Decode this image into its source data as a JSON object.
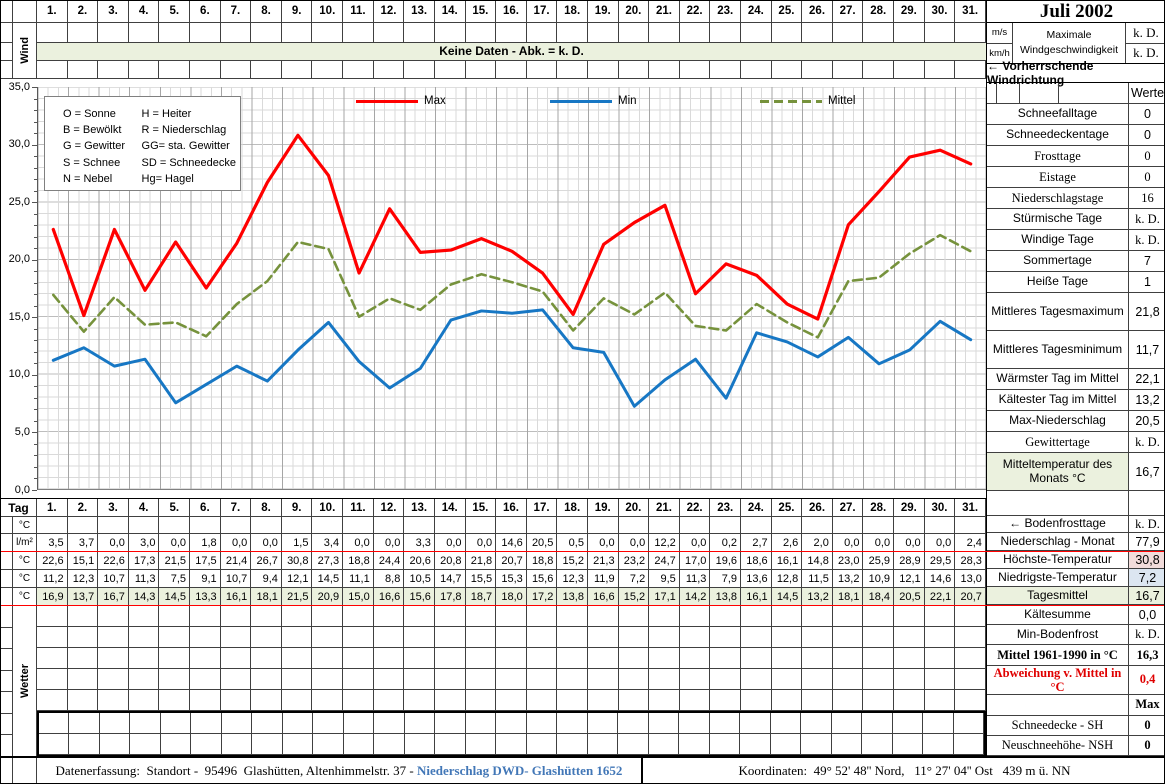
{
  "title": "Juli 2002",
  "days": [
    "1.",
    "2.",
    "3.",
    "4.",
    "5.",
    "6.",
    "7.",
    "8.",
    "9.",
    "10.",
    "11.",
    "12.",
    "13.",
    "14.",
    "15.",
    "16.",
    "17.",
    "18.",
    "19.",
    "20.",
    "21.",
    "22.",
    "23.",
    "24.",
    "25.",
    "26.",
    "27.",
    "28.",
    "29.",
    "30.",
    "31."
  ],
  "wind_section": {
    "row_label": "Wind",
    "banner": "Keine Daten - Abk. = k. D."
  },
  "abbreviations": {
    "left": [
      "O = Sonne",
      "B = Bewölkt",
      "G = Gewitter",
      "S = Schnee",
      "N = Nebel"
    ],
    "right": [
      "H = Heiter",
      "R = Niederschlag",
      "GG= sta. Gewitter",
      "SD = Schneedecke",
      "Hg= Hagel"
    ]
  },
  "chart_data": {
    "type": "line",
    "title": "",
    "xlabel": "",
    "ylabel": "",
    "x_categories": [
      "1.",
      "2.",
      "3.",
      "4.",
      "5.",
      "6.",
      "7.",
      "8.",
      "9.",
      "10.",
      "11.",
      "12.",
      "13.",
      "14.",
      "15.",
      "16.",
      "17.",
      "18.",
      "19.",
      "20.",
      "21.",
      "22.",
      "23.",
      "24.",
      "25.",
      "26.",
      "27.",
      "28.",
      "29.",
      "30.",
      "31."
    ],
    "ylim": [
      0,
      35
    ],
    "ytick_step": 5,
    "grid": true,
    "legend_position": "top-center",
    "series": [
      {
        "name": "Max",
        "color": "#FF0000",
        "dash": false,
        "values": [
          22.6,
          15.1,
          22.6,
          17.3,
          21.5,
          17.5,
          21.4,
          26.7,
          30.8,
          27.3,
          18.8,
          24.4,
          20.6,
          20.8,
          21.8,
          20.7,
          18.8,
          15.2,
          21.3,
          23.2,
          24.7,
          17.0,
          19.6,
          18.6,
          16.1,
          14.8,
          23.0,
          25.9,
          28.9,
          29.5,
          28.3
        ]
      },
      {
        "name": "Min",
        "color": "#1777C4",
        "dash": false,
        "values": [
          11.2,
          12.3,
          10.7,
          11.3,
          7.5,
          9.1,
          10.7,
          9.4,
          12.1,
          14.5,
          11.1,
          8.8,
          10.5,
          14.7,
          15.5,
          15.3,
          15.6,
          12.3,
          11.9,
          7.2,
          9.5,
          11.3,
          7.9,
          13.6,
          12.8,
          11.5,
          13.2,
          10.9,
          12.1,
          14.6,
          13.0
        ]
      },
      {
        "name": "Mittel",
        "color": "#76923C",
        "dash": true,
        "values": [
          16.9,
          13.7,
          16.7,
          14.3,
          14.5,
          13.3,
          16.1,
          18.1,
          21.5,
          20.9,
          15.0,
          16.6,
          15.6,
          17.8,
          18.7,
          18.0,
          17.2,
          13.8,
          16.6,
          15.2,
          17.1,
          14.2,
          13.8,
          16.1,
          14.5,
          13.2,
          18.1,
          18.4,
          20.5,
          22.1,
          20.7
        ]
      }
    ]
  },
  "bottom_table": {
    "corner_label": "Tag",
    "wetter_label": "Wetter",
    "precipitation": [
      3.5,
      3.7,
      0.0,
      3.0,
      0.0,
      1.8,
      0.0,
      0.0,
      1.5,
      3.4,
      0.0,
      0.0,
      3.3,
      0.0,
      0.0,
      14.6,
      20.5,
      0.5,
      0.0,
      0.0,
      12.2,
      0.0,
      0.2,
      2.7,
      2.6,
      2.0,
      0.0,
      0.0,
      0.0,
      0.0,
      2.4
    ],
    "rows": [
      {
        "label": "°C",
        "type": "empty"
      },
      {
        "label": "l/m²",
        "type": "precip"
      },
      {
        "label": "°C",
        "type": "series",
        "series": 0
      },
      {
        "label": "°C",
        "type": "series",
        "series": 1
      },
      {
        "label": "°C",
        "type": "series",
        "series": 2,
        "highlight": "green"
      }
    ]
  },
  "sidebar": {
    "wind": {
      "units": [
        "m/s",
        "km/h"
      ],
      "label": [
        "Maximale",
        "Windgeschwindigkeit"
      ],
      "values": [
        "k. D.",
        "k. D."
      ],
      "direction": "←  Vorherrschende Windrichtung"
    },
    "werte_header": "Werte",
    "stats_top": [
      {
        "label": "Schneefalltage",
        "value": "0"
      },
      {
        "label": "Schneedeckentage",
        "value": "0"
      },
      {
        "label": "Frosttage",
        "value": "0",
        "serif": true
      },
      {
        "label": "Eistage",
        "value": "0",
        "serif": true
      },
      {
        "label": "Niederschlagstage",
        "value": "16",
        "serif": true
      },
      {
        "label": "Stürmische Tage",
        "value": "k. D."
      },
      {
        "label": "Windige Tage",
        "value": "k. D."
      },
      {
        "label": "Sommertage",
        "value": "7"
      },
      {
        "label": "Heiße Tage",
        "value": "1"
      },
      {
        "label": "Mittleres Tagesmaximum",
        "value": "21,8",
        "tall": true
      },
      {
        "label": "Mittleres Tagesminimum",
        "value": "11,7",
        "tall": true
      },
      {
        "label": "Wärmster Tag im Mittel",
        "value": "22,1"
      },
      {
        "label": "Kältester Tag im Mittel",
        "value": "13,2"
      },
      {
        "label": "Max-Niederschlag",
        "value": "20,5"
      },
      {
        "label": "Gewittertage",
        "value": "k. D.",
        "serif": true
      },
      {
        "label": "Mitteltemperatur des Monats °C",
        "value": "16,7",
        "tall": true,
        "label_bg": "green"
      }
    ],
    "stats_mid": [
      {
        "label": "←  Bodenfrosttage",
        "value": "k. D."
      },
      {
        "label": "Niederschlag - Monat",
        "value": "77,9"
      },
      {
        "label": "Höchste-Temperatur",
        "value": "30,8",
        "value_bg": "pink"
      },
      {
        "label": "Niedrigste-Temperatur",
        "value": "7,2",
        "value_bg": "blue"
      },
      {
        "label": "Tagesmittel",
        "value": "16,7",
        "label_bg": "green",
        "value_bg": "green"
      }
    ],
    "stats_bottom": [
      {
        "label": "Kältesumme",
        "value": "0,0"
      },
      {
        "label": "Min-Bodenfrost",
        "value": "k. D."
      },
      {
        "label": "Mittel 1961-1990 in °C",
        "value": "16,3",
        "serif": true,
        "bold": true
      },
      {
        "label": "Abweichung v. Mittel in °C",
        "value": "0,4",
        "serif": true,
        "bold": true,
        "red": true
      },
      {
        "label": "",
        "value": "Max",
        "serif": true,
        "bold_value": true
      },
      {
        "label": "Schneedecke -   SH",
        "value": "0",
        "serif": true,
        "bold_value": true
      },
      {
        "label": "Neuschneehöhe- NSH",
        "value": "0",
        "serif": true,
        "bold_value": true
      }
    ]
  },
  "footer": {
    "left_text": "Datenerfassung:  Standort -  95496  Glashütten, Altenhimmelstr. 37 - ",
    "link_text": "Niederschlag DWD- Glashütten 1652",
    "coordinates": "Koordinaten:  49° 52' 48'' Nord,   11° 27' 04'' Ost   439 m ü. NN"
  },
  "colors": {
    "cell_green": "#EBF1DE",
    "cell_pink": "#F2DCDB",
    "cell_blue": "#DCE6F1",
    "red_line": "#FF0000",
    "link_blue": "#4277B7"
  }
}
